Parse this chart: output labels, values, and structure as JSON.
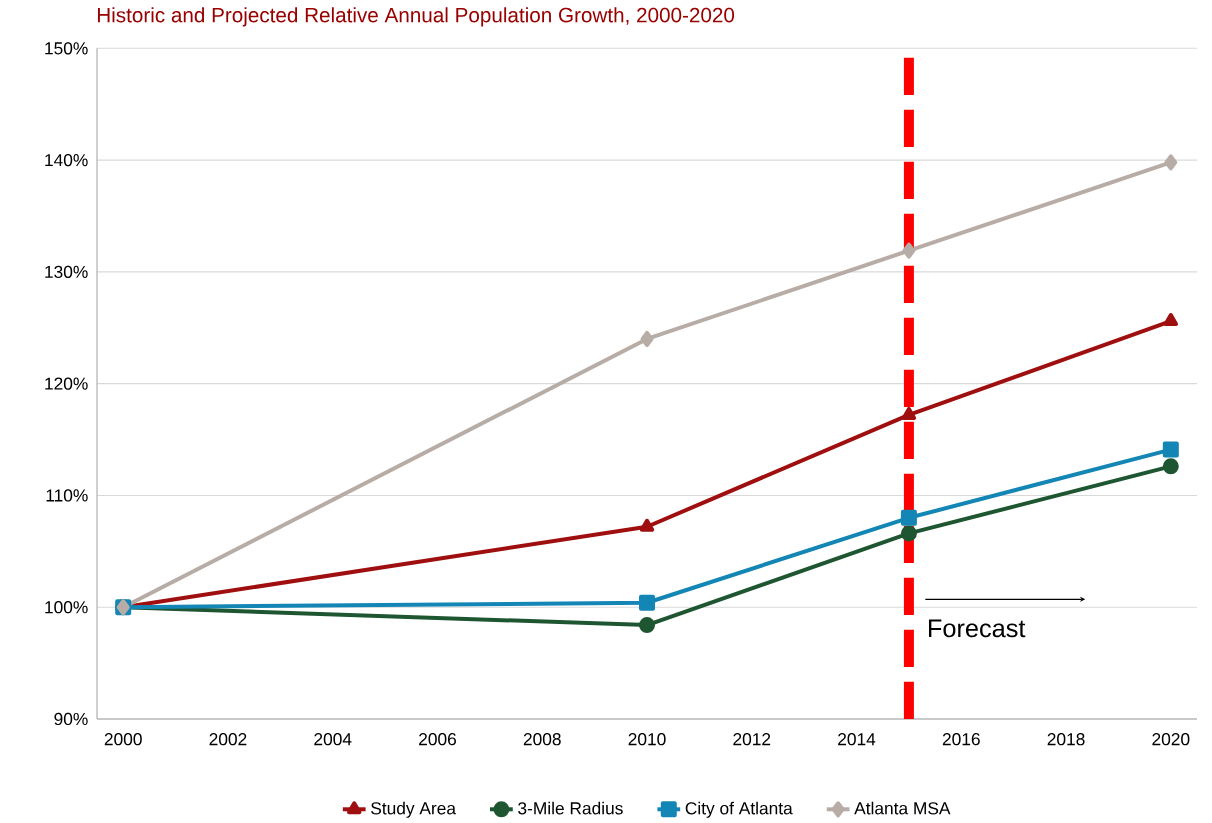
{
  "chart_data": {
    "type": "line",
    "title": "Historic and Projected Relative Annual Population Growth, 2000-2020",
    "x": [
      2000,
      2010,
      2015,
      2020
    ],
    "series": [
      {
        "name": "Study Area",
        "color": "#a00f0f",
        "marker": "triangle",
        "values": [
          100,
          107.2,
          117.2,
          125.6
        ]
      },
      {
        "name": "3-Mile Radius",
        "color": "#1e5631",
        "marker": "circle",
        "values": [
          100,
          98.4,
          106.6,
          112.6
        ]
      },
      {
        "name": "City of Atlanta",
        "color": "#1386b5",
        "marker": "square",
        "values": [
          100,
          100.4,
          108.0,
          114.1
        ]
      },
      {
        "name": "Atlanta MSA",
        "color": "#b8ada6",
        "marker": "diamond",
        "values": [
          100,
          124.0,
          131.9,
          139.8
        ]
      }
    ],
    "xlim": [
      1999.5,
      2020.5
    ],
    "xticks": [
      2000,
      2002,
      2004,
      2006,
      2008,
      2010,
      2012,
      2014,
      2016,
      2018,
      2020
    ],
    "ylim": [
      90,
      150
    ],
    "yticks": [
      {
        "value": 90,
        "label": "90%"
      },
      {
        "value": 100,
        "label": "100%"
      },
      {
        "value": 110,
        "label": "110%"
      },
      {
        "value": 120,
        "label": "120%"
      },
      {
        "value": 130,
        "label": "130%"
      },
      {
        "value": 140,
        "label": "140%"
      },
      {
        "value": 150,
        "label": "150%"
      }
    ],
    "grid": "y",
    "legend": "bottom",
    "ref_lines": [
      {
        "axis": "x",
        "value": 2015,
        "color": "#ff0000",
        "line_style": "dashed"
      }
    ],
    "annotations": [
      "Forecast"
    ]
  }
}
